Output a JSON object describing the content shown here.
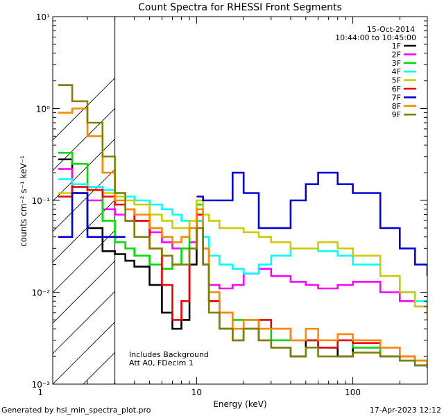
{
  "chart_data": {
    "type": "line",
    "title": "Count Spectra for RHESSI Front Segments",
    "xlabel": "Energy (keV)",
    "ylabel": "counts cm⁻² s⁻¹ keV⁻¹",
    "xscale": "log",
    "yscale": "log",
    "xlim": [
      1.2,
      300
    ],
    "ylim": [
      0.001,
      10
    ],
    "x_ticks": [
      {
        "value": 1,
        "label": "1"
      },
      {
        "value": 10,
        "label": "10"
      },
      {
        "value": 100,
        "label": "100"
      }
    ],
    "y_ticks": [
      {
        "value": 10,
        "label": "10¹"
      },
      {
        "value": 1,
        "label": "10⁰"
      },
      {
        "value": 0.1,
        "label": "10⁻¹"
      },
      {
        "value": 0.01,
        "label": "10⁻²"
      },
      {
        "value": 0.001,
        "label": "10⁻³"
      }
    ],
    "date_text": "15-Oct-2014",
    "time_range_text": "10:44:00 to 10:45:00",
    "annotation_lines": [
      "Includes Background",
      "Att A0, FDecim 1"
    ],
    "excluded_region_below_keV": 3,
    "legend_position": "top-right",
    "series": [
      {
        "name": "1F",
        "color": "#000000",
        "x": [
          1.3,
          1.6,
          2.0,
          2.5,
          3.0,
          3.5,
          4.0,
          5.0,
          6.0,
          7.0,
          8.0,
          9.0,
          10.0,
          11.0,
          12.0,
          14.0,
          17.0,
          20.0,
          25.0,
          30.0,
          40.0,
          50.0,
          60.0,
          80.0,
          100.0,
          150.0,
          200.0,
          250.0,
          300.0
        ],
        "values": [
          0.28,
          0.12,
          0.05,
          0.028,
          0.026,
          0.022,
          0.019,
          0.012,
          0.006,
          0.004,
          0.005,
          0.02,
          0.06,
          0.02,
          0.008,
          0.004,
          0.003,
          0.004,
          0.003,
          0.0025,
          0.002,
          0.003,
          0.0025,
          0.002,
          0.0025,
          0.002,
          0.0018,
          0.0016,
          0.0015
        ]
      },
      {
        "name": "2F",
        "color": "#ff00ff",
        "x": [
          1.3,
          1.6,
          2.0,
          2.5,
          3.0,
          3.5,
          4.0,
          5.0,
          6.0,
          7.0,
          8.0,
          9.0,
          10.0,
          11.0,
          12.0,
          14.0,
          17.0,
          20.0,
          25.0,
          30.0,
          40.0,
          50.0,
          60.0,
          80.0,
          100.0,
          150.0,
          200.0,
          250.0,
          300.0
        ],
        "values": [
          0.22,
          0.12,
          0.1,
          0.08,
          0.07,
          0.06,
          0.06,
          0.045,
          0.035,
          0.03,
          0.03,
          0.035,
          0.07,
          0.03,
          0.012,
          0.011,
          0.012,
          0.016,
          0.018,
          0.015,
          0.013,
          0.012,
          0.011,
          0.012,
          0.013,
          0.01,
          0.008,
          0.007,
          0.006
        ]
      },
      {
        "name": "3F",
        "color": "#00dd00",
        "x": [
          1.3,
          1.6,
          2.0,
          2.5,
          3.0,
          3.5,
          4.0,
          5.0,
          6.0,
          7.0,
          8.0,
          9.0,
          10.0,
          11.0,
          12.0,
          14.0,
          17.0,
          20.0,
          25.0,
          30.0,
          40.0,
          50.0,
          60.0,
          80.0,
          100.0,
          150.0,
          200.0,
          250.0,
          300.0
        ],
        "values": [
          0.33,
          0.25,
          0.14,
          0.06,
          0.035,
          0.03,
          0.025,
          0.02,
          0.018,
          0.02,
          0.03,
          0.05,
          0.09,
          0.02,
          0.008,
          0.006,
          0.005,
          0.005,
          0.004,
          0.003,
          0.003,
          0.003,
          0.0025,
          0.003,
          0.0025,
          0.002,
          0.002,
          0.0018,
          0.0017
        ]
      },
      {
        "name": "4F",
        "color": "#00ffff",
        "x": [
          1.3,
          1.6,
          2.0,
          2.5,
          3.0,
          3.5,
          4.0,
          5.0,
          6.0,
          7.0,
          8.0,
          9.0,
          10.0,
          11.0,
          12.0,
          14.0,
          17.0,
          20.0,
          25.0,
          30.0,
          40.0,
          50.0,
          60.0,
          80.0,
          100.0,
          150.0,
          200.0,
          250.0,
          300.0
        ],
        "values": [
          0.17,
          0.15,
          0.14,
          0.13,
          0.12,
          0.11,
          0.1,
          0.09,
          0.08,
          0.07,
          0.06,
          0.05,
          0.06,
          0.04,
          0.025,
          0.02,
          0.018,
          0.016,
          0.02,
          0.025,
          0.03,
          0.03,
          0.028,
          0.025,
          0.02,
          0.015,
          0.01,
          0.008,
          0.007
        ]
      },
      {
        "name": "5F",
        "color": "#cccc00",
        "x": [
          1.3,
          1.6,
          2.0,
          2.5,
          3.0,
          3.5,
          4.0,
          5.0,
          6.0,
          7.0,
          8.0,
          9.0,
          10.0,
          11.0,
          12.0,
          14.0,
          17.0,
          20.0,
          25.0,
          30.0,
          40.0,
          50.0,
          60.0,
          80.0,
          100.0,
          150.0,
          200.0,
          250.0,
          300.0
        ],
        "values": [
          0.12,
          0.12,
          0.13,
          0.12,
          0.11,
          0.1,
          0.09,
          0.07,
          0.06,
          0.05,
          0.05,
          0.06,
          0.1,
          0.07,
          0.06,
          0.05,
          0.05,
          0.045,
          0.04,
          0.035,
          0.03,
          0.03,
          0.035,
          0.03,
          0.025,
          0.015,
          0.01,
          0.007,
          0.005
        ]
      },
      {
        "name": "6F",
        "color": "#ee0000",
        "x": [
          1.3,
          1.6,
          2.0,
          2.5,
          3.0,
          3.5,
          4.0,
          5.0,
          6.0,
          7.0,
          8.0,
          9.0,
          10.0,
          11.0,
          12.0,
          14.0,
          17.0,
          20.0,
          25.0,
          30.0,
          40.0,
          50.0,
          60.0,
          80.0,
          100.0,
          150.0,
          200.0,
          250.0,
          300.0
        ],
        "values": [
          0.11,
          0.14,
          0.13,
          0.11,
          0.09,
          0.08,
          0.06,
          0.03,
          0.012,
          0.005,
          0.008,
          0.03,
          0.07,
          0.03,
          0.008,
          0.004,
          0.003,
          0.004,
          0.005,
          0.004,
          0.003,
          0.003,
          0.0025,
          0.003,
          0.0028,
          0.0025,
          0.002,
          0.0018,
          0.0016
        ]
      },
      {
        "name": "7F",
        "color": "#0000dd",
        "x": [
          1.3,
          1.6,
          2.0,
          2.5,
          3.0,
          3.5,
          4.0,
          5.0,
          6.0,
          7.0,
          8.0,
          9.0,
          10.0,
          11.0,
          12.0,
          14.0,
          17.0,
          20.0,
          25.0,
          30.0,
          40.0,
          50.0,
          60.0,
          80.0,
          100.0,
          150.0,
          200.0,
          250.0,
          300.0
        ],
        "values": [
          0.04,
          0.12,
          0.04,
          0.04,
          0.04,
          null,
          null,
          null,
          null,
          null,
          null,
          null,
          0.11,
          0.1,
          0.1,
          0.1,
          0.2,
          0.12,
          0.05,
          0.05,
          0.1,
          0.15,
          0.2,
          0.15,
          0.12,
          0.05,
          0.03,
          0.02,
          0.015
        ]
      },
      {
        "name": "8F",
        "color": "#ff8800",
        "x": [
          1.3,
          1.6,
          2.0,
          2.5,
          3.0,
          3.5,
          4.0,
          5.0,
          6.0,
          7.0,
          8.0,
          9.0,
          10.0,
          11.0,
          12.0,
          14.0,
          17.0,
          20.0,
          25.0,
          30.0,
          40.0,
          50.0,
          60.0,
          80.0,
          100.0,
          150.0,
          200.0,
          250.0,
          300.0
        ],
        "values": [
          0.9,
          1.0,
          0.5,
          0.2,
          0.1,
          0.08,
          0.07,
          0.05,
          0.04,
          0.035,
          0.04,
          0.05,
          0.08,
          0.03,
          0.01,
          0.006,
          0.004,
          0.005,
          0.004,
          0.004,
          0.003,
          0.004,
          0.003,
          0.0035,
          0.003,
          0.0025,
          0.002,
          0.0018,
          0.0017
        ]
      },
      {
        "name": "9F",
        "color": "#808000",
        "x": [
          1.3,
          1.6,
          2.0,
          2.5,
          3.0,
          3.5,
          4.0,
          5.0,
          6.0,
          7.0,
          8.0,
          9.0,
          10.0,
          11.0,
          12.0,
          14.0,
          17.0,
          20.0,
          25.0,
          30.0,
          40.0,
          50.0,
          60.0,
          80.0,
          100.0,
          150.0,
          200.0,
          250.0,
          300.0
        ],
        "values": [
          1.8,
          1.2,
          0.7,
          0.3,
          0.12,
          0.06,
          0.04,
          0.03,
          0.025,
          0.02,
          0.02,
          0.03,
          0.05,
          0.02,
          0.006,
          0.004,
          0.003,
          0.004,
          0.003,
          0.0025,
          0.002,
          0.0025,
          0.002,
          0.002,
          0.0022,
          0.002,
          0.0018,
          0.0016,
          0.0015
        ]
      }
    ]
  },
  "footer": {
    "generated_by": "Generated by hsi_min_spectra_plot.pro",
    "timestamp": "17-Apr-2023 12:12"
  }
}
